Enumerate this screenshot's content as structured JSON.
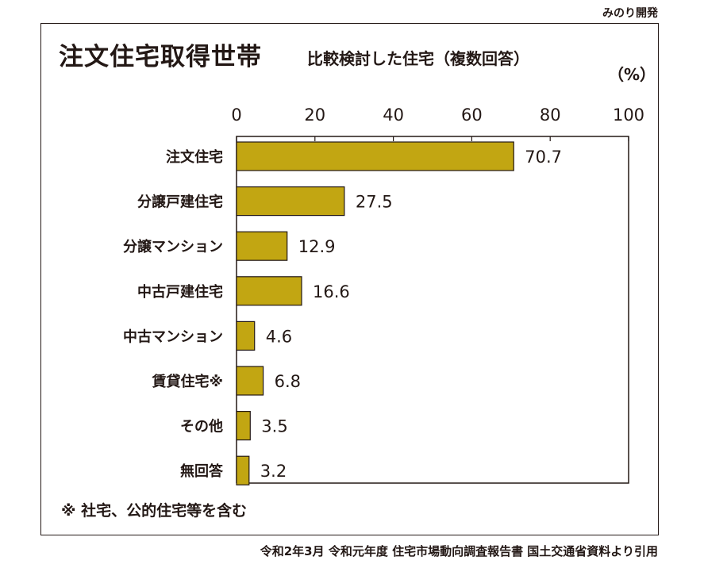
{
  "brand": "みのり開発",
  "title": "注文住宅取得世帯",
  "subtitle": "比較検討した住宅（複数回答）",
  "unit": "（%）",
  "footnote": "※ 社宅、公的住宅等を含む",
  "source": "令和2年3月 令和元年度 住宅市場動向調査報告書 国土交通省資料より引用",
  "colors": {
    "bar_fill": "#C2A612",
    "bar_stroke": "#231815",
    "text": "#231815"
  },
  "chart_data": {
    "type": "bar",
    "orientation": "horizontal",
    "categories": [
      "注文住宅",
      "分譲戸建住宅",
      "分譲マンション",
      "中古戸建住宅",
      "中古マンション",
      "賃貸住宅※",
      "その他",
      "無回答"
    ],
    "values": [
      70.7,
      27.5,
      12.9,
      16.6,
      4.6,
      6.8,
      3.5,
      3.2
    ],
    "value_labels": [
      "70.7",
      "27.5",
      "12.9",
      "16.6",
      "4.6",
      "6.8",
      "3.5",
      "3.2"
    ],
    "xlim": [
      0,
      100
    ],
    "xticks": [
      0,
      20,
      40,
      60,
      80,
      100
    ],
    "xtick_labels": [
      "0",
      "20",
      "40",
      "60",
      "80",
      "100"
    ],
    "axis_position": "top",
    "grid": false,
    "legend": "none"
  }
}
